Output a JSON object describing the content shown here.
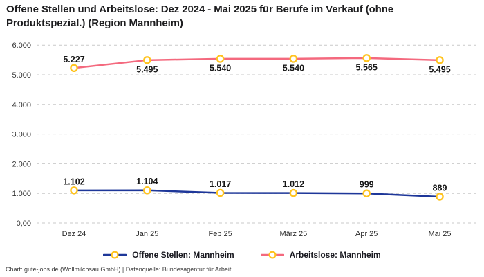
{
  "header": {
    "title": "Offene Stellen und Arbeitslose: Dez 2024 - Mai 2025 für Berufe im Verkauf (ohne Produktspezial.) (Region Mannheim)"
  },
  "footer": {
    "credit": "Chart: gute-jobs.de (Wollmilchsau GmbH) | Datenquelle: Bundesagentur für Arbeit"
  },
  "colors": {
    "open_positions_line": "#1e3799",
    "unemployed_line": "#f4697e",
    "marker_stroke": "#ffc31e",
    "marker_fill": "#ffffff",
    "gridline": "#c9c9c9",
    "axis_text": "#333333",
    "data_label_text": "#161616"
  },
  "chart_data": {
    "type": "line",
    "title": "Offene Stellen und Arbeitslose: Dez 2024 - Mai 2025 für Berufe im Verkauf (ohne Produktspezial.) (Region Mannheim)",
    "categories": [
      "Dez 24",
      "Jan 25",
      "Feb 25",
      "März 25",
      "Apr 25",
      "Mai 25"
    ],
    "series": [
      {
        "name": "Offene Stellen: Mannheim",
        "color": "#1e3799",
        "values": [
          1102,
          1104,
          1017,
          1012,
          999,
          889
        ],
        "point_labels": [
          "1.102",
          "1.104",
          "1.017",
          "1.012",
          "999",
          "889"
        ],
        "label_sides": [
          "above",
          "above",
          "above",
          "above",
          "above",
          "above"
        ]
      },
      {
        "name": "Arbeitslose: Mannheim",
        "color": "#f4697e",
        "values": [
          5227,
          5495,
          5540,
          5540,
          5565,
          5495
        ],
        "point_labels": [
          "5.227",
          "5.495",
          "5.540",
          "5.540",
          "5.565",
          "5.495"
        ],
        "label_sides": [
          "above",
          "below",
          "below",
          "below",
          "below",
          "below"
        ]
      }
    ],
    "xlabel": "",
    "ylabel": "",
    "ylim": [
      0,
      6000
    ],
    "yticks": [
      {
        "value": 0,
        "label": "0,00"
      },
      {
        "value": 1000,
        "label": "1.000"
      },
      {
        "value": 2000,
        "label": "2.000"
      },
      {
        "value": 3000,
        "label": "3.000"
      },
      {
        "value": 4000,
        "label": "4.000"
      },
      {
        "value": 5000,
        "label": "5.000"
      },
      {
        "value": 6000,
        "label": "6.000"
      }
    ],
    "grid": "horizontal-dashed",
    "legend_position": "bottom",
    "marker": {
      "shape": "circle",
      "stroke": "#ffc31e",
      "fill": "#ffffff"
    }
  }
}
